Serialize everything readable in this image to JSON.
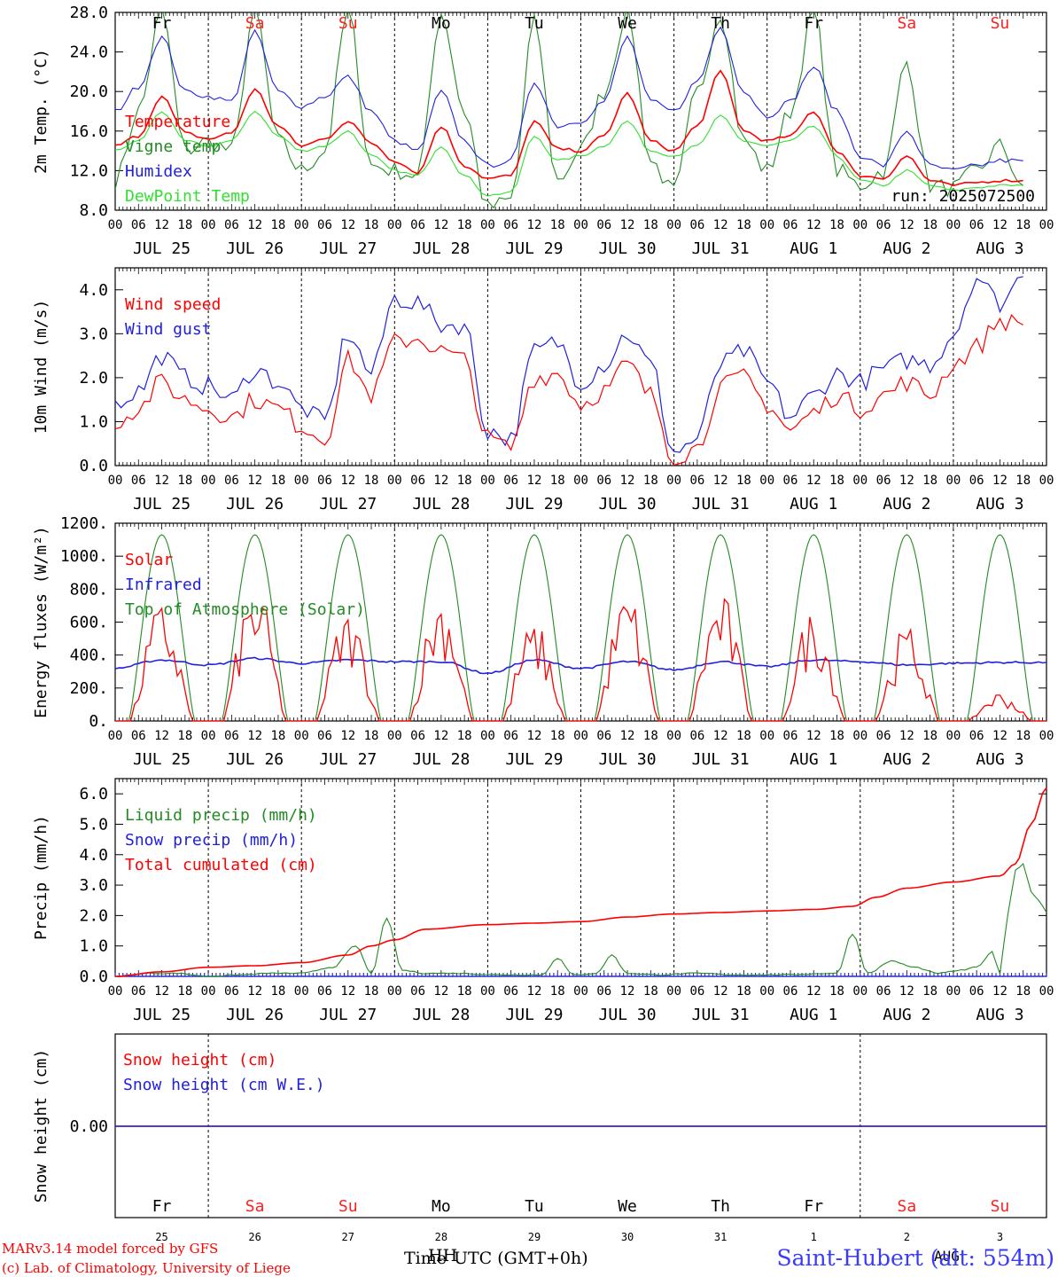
{
  "chart_data": [
    {
      "type": "line",
      "ylabel": "2m Temp. (°C)",
      "ylim": [
        8,
        28
      ],
      "y_ticks": [
        "8.0",
        "12.0",
        "16.0",
        "20.0",
        "24.0",
        "28.0"
      ],
      "y_tick_values": [
        8,
        12,
        16,
        20,
        24,
        28
      ],
      "annotation": "run: 2025072500",
      "weekday_labels": [
        "Fr",
        "Sa",
        "Su",
        "Mo",
        "Tu",
        "We",
        "Th",
        "Fr",
        "Sa",
        "Su"
      ],
      "weekend_color": "#ff2020",
      "x_unit": "hours since Jul 25 00 UTC",
      "series": [
        {
          "name": "Temperature",
          "color": "#ff0000",
          "x": [
            0,
            6,
            12,
            18,
            24,
            30,
            36,
            42,
            48,
            54,
            60,
            66,
            72,
            78,
            84,
            90,
            96,
            102,
            108,
            114,
            120,
            126,
            132,
            138,
            144,
            150,
            156,
            162,
            168,
            174,
            180,
            186,
            192,
            198,
            204,
            210,
            216,
            222,
            228,
            234
          ],
          "y": [
            14.5,
            15.5,
            19.5,
            15.8,
            15.2,
            15.8,
            20.2,
            16.5,
            14.5,
            15.2,
            17.0,
            14.8,
            13.0,
            11.8,
            16.5,
            12.5,
            11.2,
            11.5,
            17.0,
            14.2,
            14.0,
            15.5,
            19.8,
            15.0,
            14.0,
            16.5,
            22.0,
            16.0,
            15.0,
            15.5,
            18.0,
            14.0,
            11.5,
            11.2,
            13.5,
            11.0,
            10.5,
            10.8,
            11.0,
            11.0
          ]
        },
        {
          "name": "Vigne temp",
          "color": "#228b22",
          "x": [
            0,
            6,
            12,
            18,
            24,
            30,
            36,
            42,
            48,
            54,
            60,
            66,
            72,
            78,
            84,
            90,
            96,
            102,
            108,
            114,
            120,
            126,
            132,
            138,
            144,
            150,
            156,
            162,
            168,
            174,
            180,
            186,
            192,
            198,
            204,
            210,
            216,
            222,
            228,
            234
          ],
          "y": [
            11.0,
            18.0,
            28.0,
            14.0,
            15.0,
            14.0,
            28.0,
            15.0,
            12.0,
            14.0,
            28.0,
            12.5,
            12.0,
            11.5,
            28.0,
            18.0,
            8.2,
            9.0,
            27.0,
            11.0,
            14.0,
            20.0,
            28.0,
            13.0,
            9.8,
            20.0,
            28.0,
            15.0,
            12.0,
            18.0,
            28.0,
            12.0,
            10.5,
            12.0,
            23.0,
            10.5,
            10.2,
            12.0,
            14.5,
            10.5
          ]
        },
        {
          "name": "Humidex",
          "color": "#2020e0",
          "x": [
            0,
            6,
            12,
            18,
            24,
            30,
            36,
            42,
            48,
            54,
            60,
            66,
            72,
            78,
            84,
            90,
            96,
            102,
            108,
            114,
            120,
            126,
            132,
            138,
            144,
            150,
            156,
            162,
            168,
            174,
            180,
            186,
            192,
            198,
            204,
            210,
            216,
            222,
            228,
            234
          ],
          "y": [
            18.0,
            20.5,
            25.5,
            20.0,
            19.5,
            19.0,
            26.0,
            20.0,
            18.5,
            19.5,
            21.5,
            18.0,
            15.0,
            14.0,
            20.0,
            15.0,
            12.5,
            13.0,
            21.0,
            16.5,
            17.0,
            19.0,
            25.5,
            19.0,
            18.0,
            21.0,
            26.5,
            20.0,
            17.5,
            19.0,
            22.5,
            18.0,
            13.5,
            12.5,
            16.0,
            12.5,
            12.0,
            12.5,
            13.0,
            13.0
          ]
        },
        {
          "name": "DewPoint Temp",
          "color": "#32e032",
          "x": [
            0,
            6,
            12,
            18,
            24,
            30,
            36,
            42,
            48,
            54,
            60,
            66,
            72,
            78,
            84,
            90,
            96,
            102,
            108,
            114,
            120,
            126,
            132,
            138,
            144,
            150,
            156,
            162,
            168,
            174,
            180,
            186,
            192,
            198,
            204,
            210,
            216,
            222,
            228,
            234
          ],
          "y": [
            14.0,
            15.0,
            18.0,
            15.0,
            14.5,
            15.0,
            18.0,
            15.5,
            14.0,
            14.5,
            16.0,
            13.5,
            12.0,
            11.5,
            14.5,
            11.5,
            9.5,
            9.8,
            15.5,
            13.0,
            13.5,
            14.5,
            17.0,
            14.0,
            13.5,
            14.5,
            17.5,
            15.0,
            14.5,
            15.0,
            16.5,
            13.5,
            11.0,
            10.5,
            12.0,
            10.5,
            10.0,
            10.3,
            10.5,
            10.5
          ]
        }
      ]
    },
    {
      "type": "line",
      "ylabel": "10m Wind (m/s)",
      "ylim": [
        0,
        4.5
      ],
      "y_ticks": [
        "0.0",
        "1.0",
        "2.0",
        "3.0",
        "4.0"
      ],
      "y_tick_values": [
        0,
        1,
        2,
        3,
        4
      ],
      "x_unit": "hours since Jul 25 00 UTC",
      "series": [
        {
          "name": "Wind speed",
          "color": "#ff0000",
          "x": [
            0,
            6,
            12,
            18,
            24,
            30,
            36,
            42,
            48,
            54,
            60,
            66,
            72,
            78,
            84,
            90,
            96,
            102,
            108,
            114,
            120,
            126,
            132,
            138,
            144,
            150,
            156,
            162,
            168,
            174,
            180,
            186,
            192,
            198,
            204,
            210,
            216,
            222,
            228,
            234
          ],
          "y": [
            1.0,
            1.3,
            1.9,
            1.5,
            1.3,
            1.1,
            1.5,
            1.3,
            0.9,
            0.6,
            2.4,
            1.6,
            2.8,
            2.9,
            2.6,
            2.4,
            0.6,
            0.4,
            2.0,
            2.1,
            1.4,
            1.7,
            2.3,
            1.6,
            0.2,
            0.4,
            1.8,
            2.0,
            1.4,
            0.8,
            1.2,
            1.6,
            1.3,
            1.6,
            1.9,
            1.6,
            2.3,
            2.7,
            3.3,
            3.2
          ]
        },
        {
          "name": "Wind gust",
          "color": "#2020e0",
          "x": [
            0,
            6,
            12,
            18,
            24,
            30,
            36,
            42,
            48,
            54,
            60,
            66,
            72,
            78,
            84,
            90,
            96,
            102,
            108,
            114,
            120,
            126,
            132,
            138,
            144,
            150,
            156,
            162,
            168,
            174,
            180,
            186,
            192,
            198,
            204,
            210,
            216,
            222,
            228,
            234
          ],
          "y": [
            1.4,
            1.7,
            2.5,
            2.0,
            1.8,
            1.5,
            2.2,
            1.9,
            1.3,
            1.0,
            3.0,
            2.1,
            3.8,
            3.7,
            3.2,
            3.2,
            0.8,
            0.6,
            2.6,
            2.8,
            1.9,
            2.3,
            3.0,
            2.3,
            0.3,
            0.6,
            2.3,
            2.6,
            1.9,
            1.1,
            1.6,
            2.1,
            1.9,
            2.2,
            2.4,
            2.3,
            3.0,
            4.3,
            3.7,
            4.3
          ]
        }
      ]
    },
    {
      "type": "line",
      "ylabel": "Energy fluxes (W/m²)",
      "ylim": [
        0,
        1200
      ],
      "y_ticks": [
        "0.",
        "200.",
        "400.",
        "600.",
        "800.",
        "1000.",
        "1200."
      ],
      "y_tick_values": [
        0,
        200,
        400,
        600,
        800,
        1000,
        1200
      ],
      "x_unit": "hours since Jul 25 00 UTC",
      "series": [
        {
          "name": "Solar",
          "color": "#ff0000",
          "peaks": [
            730,
            840,
            680,
            810,
            610,
            800,
            800,
            700,
            590,
            180
          ]
        },
        {
          "name": "Infrared",
          "color": "#2020e0",
          "x": [
            0,
            12,
            24,
            36,
            48,
            60,
            72,
            84,
            96,
            108,
            120,
            132,
            144,
            156,
            168,
            180,
            192,
            204,
            216,
            228,
            240
          ],
          "y": [
            320,
            370,
            340,
            380,
            350,
            370,
            360,
            360,
            290,
            370,
            320,
            360,
            310,
            360,
            330,
            370,
            360,
            340,
            350,
            355,
            355
          ]
        },
        {
          "name": "Top of Atmosphere (Solar)",
          "color": "#228b22",
          "peak": 1130
        }
      ]
    },
    {
      "type": "line",
      "ylabel": "Precip (mm/h)",
      "ylim": [
        0,
        6.5
      ],
      "y_ticks": [
        "0.0",
        "1.0",
        "2.0",
        "3.0",
        "4.0",
        "5.0",
        "6.0"
      ],
      "y_tick_values": [
        0,
        1,
        2,
        3,
        4,
        5,
        6
      ],
      "x_unit": "hours since Jul 25 00 UTC",
      "series": [
        {
          "name": "Liquid precip (mm/h)",
          "color": "#228b22",
          "x": [
            0,
            8,
            16,
            24,
            32,
            40,
            48,
            56,
            62,
            66,
            70,
            74,
            80,
            88,
            100,
            110,
            114,
            118,
            124,
            128,
            132,
            140,
            150,
            160,
            170,
            186,
            190,
            194,
            200,
            206,
            212,
            218,
            222,
            226,
            228,
            230,
            232,
            234,
            236,
            238,
            240
          ],
          "y": [
            0.0,
            0.1,
            0.1,
            0.0,
            0.05,
            0.1,
            0.1,
            0.3,
            1.0,
            0.1,
            1.9,
            0.2,
            0.1,
            0.1,
            0.05,
            0.05,
            0.6,
            0.05,
            0.1,
            0.7,
            0.1,
            0.05,
            0.1,
            0.05,
            0.05,
            0.1,
            1.4,
            0.1,
            0.5,
            0.3,
            0.1,
            0.2,
            0.3,
            0.8,
            0.1,
            2.0,
            3.5,
            3.7,
            2.8,
            2.5,
            2.1
          ]
        },
        {
          "name": "Snow precip (mm/h)",
          "color": "#2020e0",
          "x": [
            0,
            240
          ],
          "y": [
            0,
            0
          ]
        },
        {
          "name": "Total cumulated (cm)",
          "color": "#ff0000",
          "x": [
            0,
            12,
            24,
            36,
            48,
            60,
            66,
            72,
            80,
            96,
            108,
            120,
            132,
            144,
            156,
            168,
            180,
            190,
            196,
            204,
            216,
            228,
            232,
            236,
            240
          ],
          "y": [
            0.0,
            0.15,
            0.3,
            0.35,
            0.45,
            0.7,
            1.0,
            1.2,
            1.55,
            1.7,
            1.75,
            1.8,
            1.95,
            2.05,
            2.1,
            2.15,
            2.2,
            2.3,
            2.6,
            2.9,
            3.1,
            3.3,
            3.7,
            5.0,
            6.2
          ]
        }
      ]
    },
    {
      "type": "line",
      "ylabel": "Snow height (cm)",
      "y_ticks": [
        "0.00"
      ],
      "x_unit": "hours since Jul 25 00 UTC",
      "series": [
        {
          "name": "Snow height (cm)",
          "color": "#ff0000",
          "x": [
            0,
            240
          ],
          "y": [
            0,
            0
          ]
        },
        {
          "name": "Snow height (cm W.E.)",
          "color": "#2020e0",
          "x": [
            0,
            240
          ],
          "y": [
            0,
            0
          ]
        }
      ],
      "weekday_labels": [
        "Fr",
        "Sa",
        "Su",
        "Mo",
        "Tu",
        "We",
        "Th",
        "Fr",
        "Sa",
        "Su"
      ],
      "day_numbers": [
        "25",
        "26",
        "27",
        "28",
        "29",
        "30",
        "31",
        "1",
        "2",
        "3"
      ],
      "month_labels": [
        "JUL",
        "AUG"
      ]
    }
  ],
  "hour_ticks": [
    "00",
    "06",
    "12",
    "18"
  ],
  "hour_end_tick": "00",
  "date_labels": [
    "JUL 25",
    "JUL 26",
    "JUL 27",
    "JUL 28",
    "JUL 29",
    "JUL 30",
    "JUL 31",
    "AUG  1",
    "AUG  2",
    "AUG  3"
  ],
  "footer": {
    "credit_line1": "MARv3.14 model forced by GFS",
    "credit_line2": "(c) Lab. of Climatology, University of Liege",
    "xlabel_a": "Time",
    "xlabel_b": "UTC (GMT+0h)",
    "xlabel_overlap": "HH",
    "station": "Saint-Hubert (alt: 554m)",
    "station_overlap": "AUG"
  }
}
